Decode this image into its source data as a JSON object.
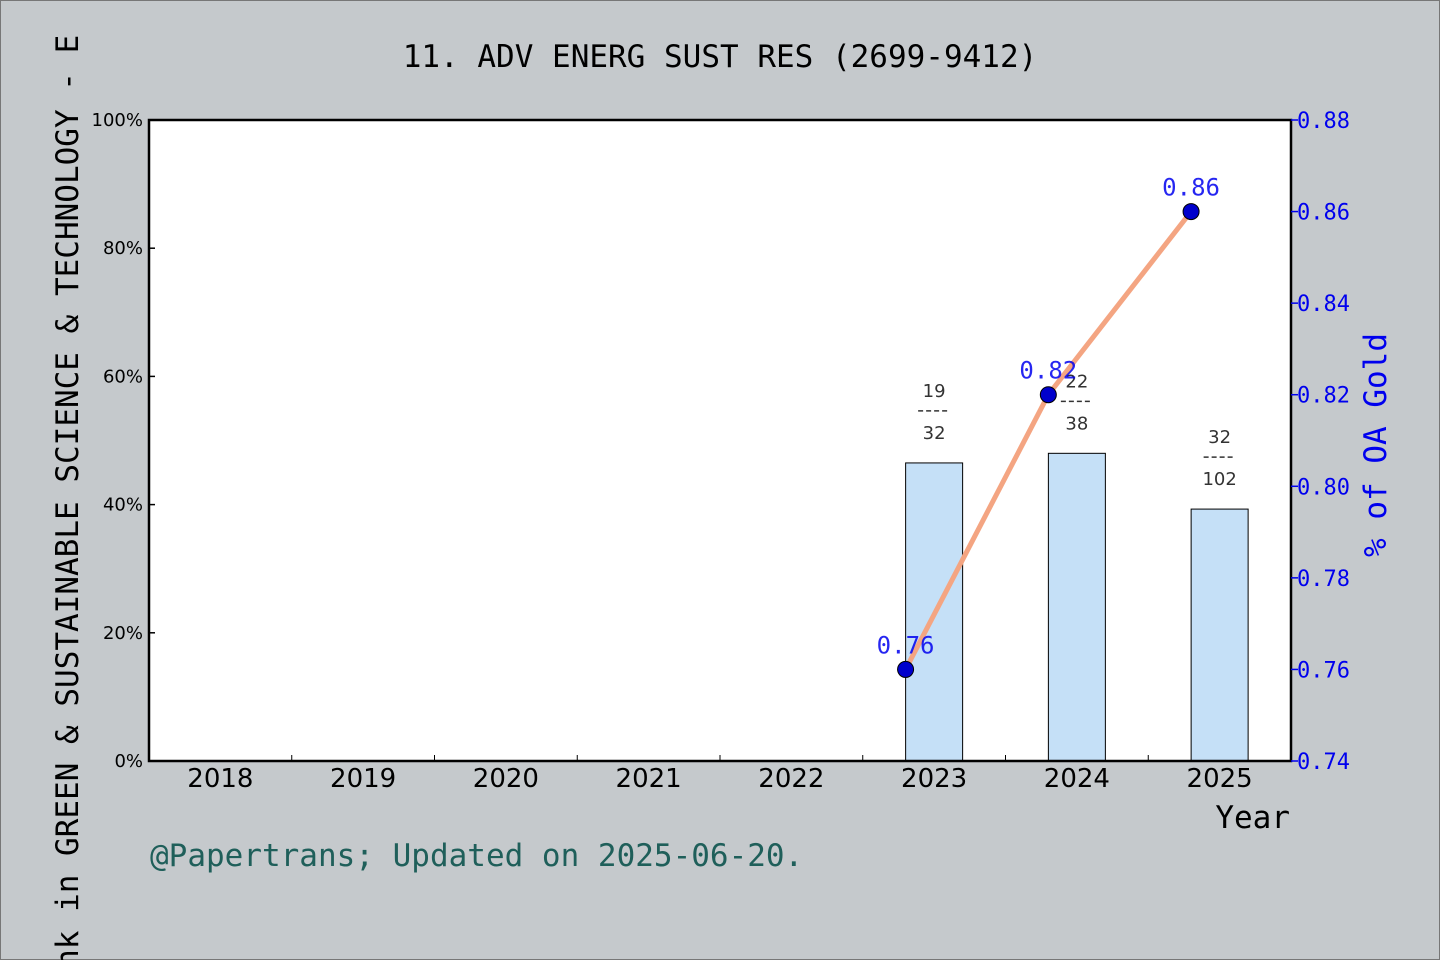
{
  "chart_data": {
    "type": "bar+line",
    "title": "11. ADV ENERG SUST RES (2699-9412)",
    "xlabel": "Year",
    "ylabel_left": "Rank in GREEN & SUSTAINABLE SCIENCE & TECHNOLOGY - E",
    "ylabel_right": "% of OA Gold",
    "categories": [
      "2018",
      "2019",
      "2020",
      "2021",
      "2022",
      "2023",
      "2024",
      "2025"
    ],
    "left_axis": {
      "ylim": [
        0,
        100
      ],
      "ticks": [
        "0%",
        "20%",
        "40%",
        "60%",
        "80%",
        "100%"
      ]
    },
    "right_axis": {
      "ylim": [
        0.74,
        0.88
      ],
      "ticks": [
        "0.74",
        "0.76",
        "0.78",
        "0.80",
        "0.82",
        "0.84",
        "0.86",
        "0.88"
      ]
    },
    "bars": [
      {
        "year": "2023",
        "value": 46.5,
        "rank": "19",
        "total": "32"
      },
      {
        "year": "2024",
        "value": 48.0,
        "rank": "22",
        "total": "38"
      },
      {
        "year": "2025",
        "value": 39.3,
        "rank": "32",
        "total": "102"
      }
    ],
    "line": [
      {
        "year": "2023",
        "value": 0.76,
        "label": "0.76"
      },
      {
        "year": "2024",
        "value": 0.82,
        "label": "0.82"
      },
      {
        "year": "2025",
        "value": 0.86,
        "label": "0.86"
      }
    ],
    "colors": {
      "bar": "#c5e0f7",
      "line": "#f4a582",
      "marker": "#0000cc",
      "right_axis": "#0000ee",
      "footer": "#1f5f5a",
      "background": "#c5c9cc"
    },
    "footer": "@Papertrans; Updated on 2025-06-20."
  }
}
